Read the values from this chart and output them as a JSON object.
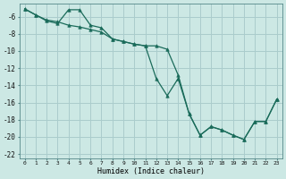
{
  "xlabel": "Humidex (Indice chaleur)",
  "bg_color": "#cce8e4",
  "grid_color": "#aacccc",
  "line_color": "#1a6b5a",
  "xlim": [
    -0.5,
    23.5
  ],
  "ylim": [
    -22.5,
    -4.5
  ],
  "xticks": [
    0,
    1,
    2,
    3,
    4,
    5,
    6,
    7,
    8,
    9,
    10,
    11,
    12,
    13,
    14,
    15,
    16,
    17,
    18,
    19,
    20,
    21,
    22,
    23
  ],
  "yticks": [
    -6,
    -8,
    -10,
    -12,
    -14,
    -16,
    -18,
    -20,
    -22
  ],
  "series1_x": [
    0,
    1,
    2,
    3,
    4,
    5,
    6,
    7,
    8,
    9,
    10,
    11,
    12,
    13,
    14,
    15,
    16,
    17,
    18,
    19,
    20,
    21,
    22,
    23
  ],
  "series1_y": [
    -5.1,
    -5.8,
    -6.5,
    -6.8,
    -5.2,
    -5.2,
    -7.0,
    -7.3,
    -8.6,
    -8.9,
    -9.2,
    -9.4,
    -13.2,
    -15.2,
    -13.2,
    -17.3,
    -19.8,
    -18.8,
    -19.2,
    -19.8,
    -20.3,
    -18.2,
    -18.2,
    -15.6
  ],
  "series2_x": [
    0,
    1,
    2,
    3,
    4,
    5,
    6,
    7,
    8,
    9,
    10,
    11,
    12,
    13,
    14,
    15,
    16,
    17,
    18,
    19,
    20,
    21,
    22,
    23
  ],
  "series2_y": [
    -5.1,
    -5.8,
    -6.4,
    -6.6,
    -7.0,
    -7.2,
    -7.5,
    -7.8,
    -8.6,
    -8.9,
    -9.2,
    -9.4,
    -9.4,
    -9.8,
    -12.8,
    -17.3,
    -19.8,
    -18.8,
    -19.2,
    -19.8,
    -20.3,
    -18.2,
    -18.2,
    -15.6
  ]
}
